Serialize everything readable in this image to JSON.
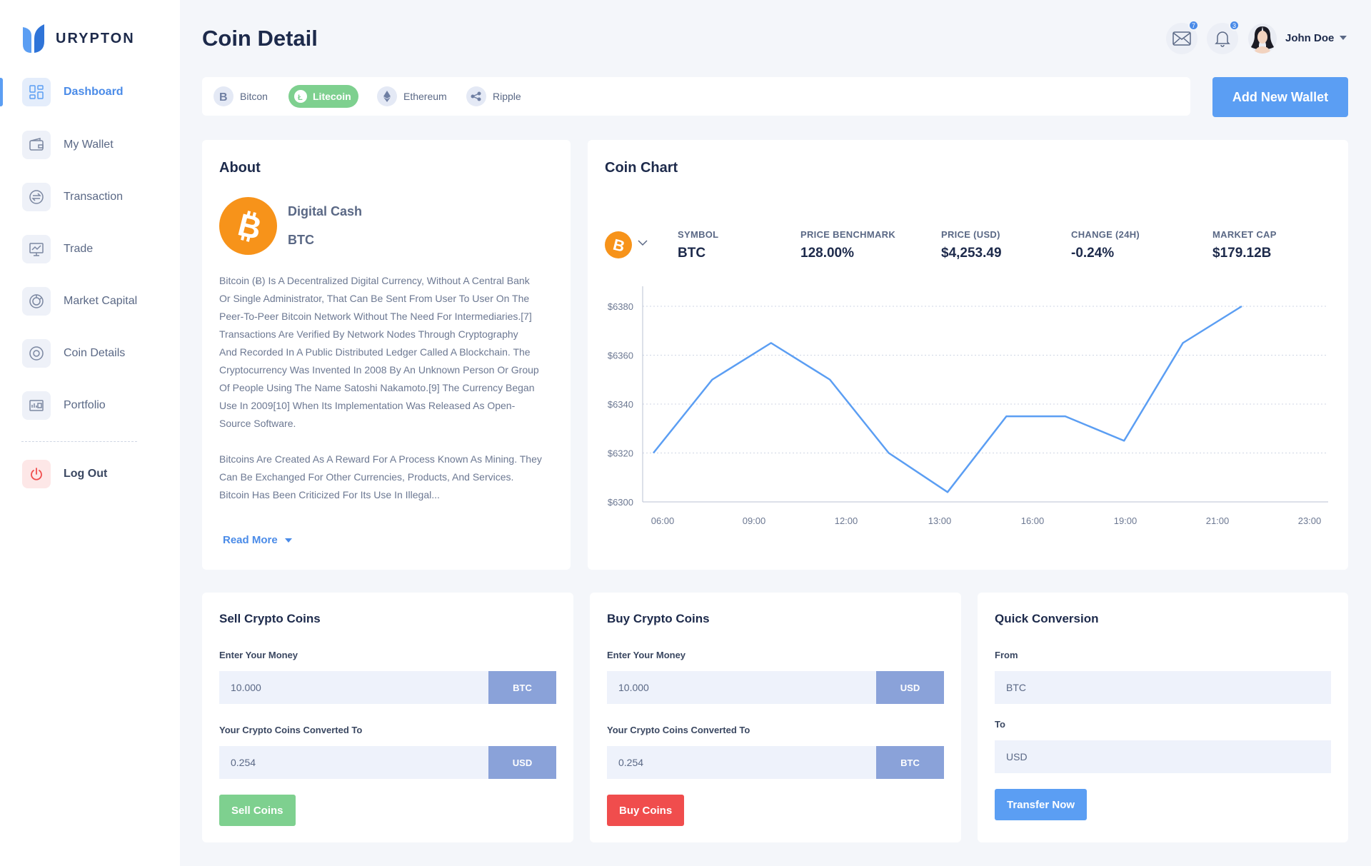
{
  "brand": {
    "name": "URYPTON",
    "accent": "#5b9ef3"
  },
  "sidebar": {
    "items": [
      {
        "label": "Dashboard",
        "icon": "dashboard-icon"
      },
      {
        "label": "My Wallet",
        "icon": "wallet-icon"
      },
      {
        "label": "Transaction",
        "icon": "transaction-icon"
      },
      {
        "label": "Trade",
        "icon": "trade-icon"
      },
      {
        "label": "Market Capital",
        "icon": "market-icon"
      },
      {
        "label": "Coin Details",
        "icon": "coin-icon"
      },
      {
        "label": "Portfolio",
        "icon": "portfolio-icon"
      }
    ],
    "logout": "Log Out"
  },
  "header": {
    "title": "Coin Detail",
    "mail_count": "7",
    "notif_count": "3",
    "user_name": "John Doe"
  },
  "coin_tabs": [
    {
      "label": "Bitcon",
      "active": false
    },
    {
      "label": "Litecoin",
      "active": true
    },
    {
      "label": "Ethereum",
      "active": false
    },
    {
      "label": "Ripple",
      "active": false
    }
  ],
  "add_wallet_label": "Add New Wallet",
  "about": {
    "title": "About",
    "name": "Digital Cash",
    "symbol": "BTC",
    "paragraph1_lines": [
      "Bitcoin (Ƀ) Is A Decentralized Digital Currency, Without A Central Bank",
      "Or Single Administrator, That Can Be Sent From User To User On The",
      "Peer-To-Peer Bitcoin Network Without The Need For Intermediaries.[7]",
      "Transactions Are Verified By Network Nodes Through Cryptography",
      "And Recorded In A Public Distributed Ledger Called A Blockchain. The",
      "Cryptocurrency Was Invented In 2008 By An Unknown Person Or Group",
      "Of People Using The Name Satoshi Nakamoto.[9] The Currency Began",
      "Use In 2009[10] When Its Implementation Was Released As Open-",
      "Source Software."
    ],
    "paragraph2_lines": [
      "Bitcoins Are Created As A Reward For A Process Known As Mining. They",
      "Can Be Exchanged For Other Currencies, Products, And Services.",
      "Bitcoin Has Been Criticized For Its Use In Illegal..."
    ],
    "read_more": "Read More"
  },
  "coin_chart": {
    "title": "Coin Chart",
    "stats": [
      {
        "label": "SYMBOL",
        "value": "BTC"
      },
      {
        "label": "PRICE BENCHMARK",
        "value": "128.00%"
      },
      {
        "label": "PRICE (USD)",
        "value": "$4,253.49"
      },
      {
        "label": "CHANGE (24H)",
        "value": "-0.24%"
      },
      {
        "label": "MARKET CAP",
        "value": "$179.12B"
      }
    ]
  },
  "chart_data": {
    "type": "line",
    "title": "",
    "xlabel": "",
    "ylabel": "",
    "x_ticks": [
      "06:00",
      "09:00",
      "12:00",
      "13:00",
      "16:00",
      "19:00",
      "21:00",
      "23:00"
    ],
    "y_ticks": [
      "$6380",
      "$6360",
      "$6340",
      "$6320",
      "$6300"
    ],
    "ylim": [
      6300,
      6380
    ],
    "grid": true,
    "legend": "none",
    "series": [
      {
        "color": "#5b9ef3",
        "x": [
          0,
          1,
          2,
          3,
          4,
          5,
          6,
          7,
          8,
          9,
          10
        ],
        "values": [
          6320,
          6350,
          6365,
          6350,
          6320,
          6304,
          6335,
          6335,
          6325,
          6365,
          6380
        ]
      }
    ],
    "x_range": [
      0,
      10
    ]
  },
  "sell": {
    "title": "Sell Crypto Coins",
    "money_label": "Enter Your Money",
    "money_value": "10.000",
    "money_unit": "BTC",
    "converted_label": "Your Crypto Coins Converted To",
    "converted_value": "0.254",
    "converted_unit": "USD",
    "button": "Sell Coins"
  },
  "buy": {
    "title": "Buy Crypto Coins",
    "money_label": "Enter Your Money",
    "money_value": "10.000",
    "money_unit": "USD",
    "converted_label": "Your Crypto Coins Converted To",
    "converted_value": "0.254",
    "converted_unit": "BTC",
    "button": "Buy Coins"
  },
  "conversion": {
    "title": "Quick Conversion",
    "from_label": "From",
    "from_value": "BTC",
    "to_label": "To",
    "to_value": "USD",
    "button": "Transfer Now"
  }
}
